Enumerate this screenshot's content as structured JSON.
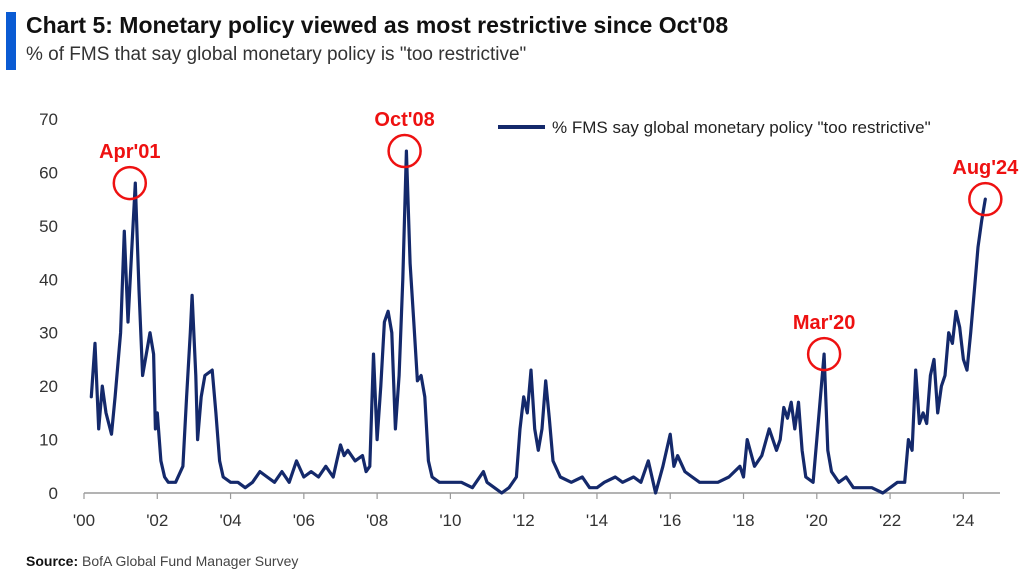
{
  "header": {
    "title": "Chart 5: Monetary policy viewed as most restrictive since Oct'08",
    "subtitle": "% of FMS that say global monetary policy is \"too restrictive\""
  },
  "footer": {
    "source_label": "Source:",
    "source_text": "BofA Global Fund Manager Survey"
  },
  "colors": {
    "line": "#14296b",
    "annotation": "#ee1111",
    "accent": "#0a5bd3",
    "axis": "#9a9a9a"
  },
  "chart_data": {
    "type": "line",
    "title": "Chart 5: Monetary policy viewed as most restrictive since Oct'08",
    "xlabel": "",
    "ylabel": "",
    "ylim": [
      0,
      70
    ],
    "xlim": [
      2000.0,
      2025.0
    ],
    "grid": false,
    "legend_position": "top-right",
    "y_ticks": [
      0,
      10,
      20,
      30,
      40,
      50,
      60,
      70
    ],
    "x_ticks": [
      {
        "value": 2000,
        "label": "'00"
      },
      {
        "value": 2002,
        "label": "'02"
      },
      {
        "value": 2004,
        "label": "'04"
      },
      {
        "value": 2006,
        "label": "'06"
      },
      {
        "value": 2008,
        "label": "'08"
      },
      {
        "value": 2010,
        "label": "'10"
      },
      {
        "value": 2012,
        "label": "'12"
      },
      {
        "value": 2014,
        "label": "'14"
      },
      {
        "value": 2016,
        "label": "'16"
      },
      {
        "value": 2018,
        "label": "'18"
      },
      {
        "value": 2020,
        "label": "'20"
      },
      {
        "value": 2022,
        "label": "'22"
      },
      {
        "value": 2024,
        "label": "'24"
      }
    ],
    "series": [
      {
        "name": "% FMS say global monetary policy \"too restrictive\"",
        "points": [
          [
            2000.2,
            18
          ],
          [
            2000.3,
            28
          ],
          [
            2000.4,
            12
          ],
          [
            2000.5,
            20
          ],
          [
            2000.6,
            15
          ],
          [
            2000.75,
            11
          ],
          [
            2000.85,
            18
          ],
          [
            2001.0,
            30
          ],
          [
            2001.1,
            49
          ],
          [
            2001.2,
            32
          ],
          [
            2001.3,
            45
          ],
          [
            2001.4,
            58
          ],
          [
            2001.5,
            38
          ],
          [
            2001.6,
            22
          ],
          [
            2001.7,
            26
          ],
          [
            2001.8,
            30
          ],
          [
            2001.9,
            26
          ],
          [
            2001.95,
            12
          ],
          [
            2002.0,
            15
          ],
          [
            2002.1,
            6
          ],
          [
            2002.2,
            3
          ],
          [
            2002.3,
            2
          ],
          [
            2002.5,
            2
          ],
          [
            2002.7,
            5
          ],
          [
            2002.8,
            18
          ],
          [
            2002.9,
            30
          ],
          [
            2002.95,
            37
          ],
          [
            2003.05,
            22
          ],
          [
            2003.1,
            10
          ],
          [
            2003.2,
            18
          ],
          [
            2003.3,
            22
          ],
          [
            2003.5,
            23
          ],
          [
            2003.6,
            15
          ],
          [
            2003.7,
            6
          ],
          [
            2003.8,
            3
          ],
          [
            2004.0,
            2
          ],
          [
            2004.2,
            2
          ],
          [
            2004.4,
            1
          ],
          [
            2004.6,
            2
          ],
          [
            2004.8,
            4
          ],
          [
            2005.0,
            3
          ],
          [
            2005.2,
            2
          ],
          [
            2005.4,
            4
          ],
          [
            2005.6,
            2
          ],
          [
            2005.8,
            6
          ],
          [
            2006.0,
            3
          ],
          [
            2006.2,
            4
          ],
          [
            2006.4,
            3
          ],
          [
            2006.6,
            5
          ],
          [
            2006.8,
            3
          ],
          [
            2006.9,
            6
          ],
          [
            2007.0,
            9
          ],
          [
            2007.1,
            7
          ],
          [
            2007.2,
            8
          ],
          [
            2007.4,
            6
          ],
          [
            2007.6,
            7
          ],
          [
            2007.7,
            4
          ],
          [
            2007.8,
            5
          ],
          [
            2007.9,
            26
          ],
          [
            2008.0,
            10
          ],
          [
            2008.1,
            20
          ],
          [
            2008.2,
            32
          ],
          [
            2008.3,
            34
          ],
          [
            2008.4,
            30
          ],
          [
            2008.5,
            12
          ],
          [
            2008.6,
            22
          ],
          [
            2008.7,
            40
          ],
          [
            2008.8,
            64
          ],
          [
            2008.9,
            43
          ],
          [
            2009.0,
            32
          ],
          [
            2009.1,
            21
          ],
          [
            2009.2,
            22
          ],
          [
            2009.3,
            18
          ],
          [
            2009.4,
            6
          ],
          [
            2009.5,
            3
          ],
          [
            2009.7,
            2
          ],
          [
            2010.0,
            2
          ],
          [
            2010.3,
            2
          ],
          [
            2010.6,
            1
          ],
          [
            2010.9,
            4
          ],
          [
            2011.0,
            2
          ],
          [
            2011.2,
            1
          ],
          [
            2011.4,
            0
          ],
          [
            2011.6,
            1
          ],
          [
            2011.8,
            3
          ],
          [
            2011.9,
            12
          ],
          [
            2012.0,
            18
          ],
          [
            2012.1,
            15
          ],
          [
            2012.2,
            23
          ],
          [
            2012.3,
            12
          ],
          [
            2012.4,
            8
          ],
          [
            2012.5,
            12
          ],
          [
            2012.6,
            21
          ],
          [
            2012.7,
            14
          ],
          [
            2012.8,
            6
          ],
          [
            2013.0,
            3
          ],
          [
            2013.3,
            2
          ],
          [
            2013.6,
            3
          ],
          [
            2013.8,
            1
          ],
          [
            2014.0,
            1
          ],
          [
            2014.2,
            2
          ],
          [
            2014.5,
            3
          ],
          [
            2014.7,
            2
          ],
          [
            2015.0,
            3
          ],
          [
            2015.2,
            2
          ],
          [
            2015.4,
            6
          ],
          [
            2015.6,
            0
          ],
          [
            2015.8,
            5
          ],
          [
            2016.0,
            11
          ],
          [
            2016.1,
            5
          ],
          [
            2016.2,
            7
          ],
          [
            2016.4,
            4
          ],
          [
            2016.6,
            3
          ],
          [
            2016.8,
            2
          ],
          [
            2017.0,
            2
          ],
          [
            2017.3,
            2
          ],
          [
            2017.6,
            3
          ],
          [
            2017.9,
            5
          ],
          [
            2018.0,
            3
          ],
          [
            2018.1,
            10
          ],
          [
            2018.3,
            5
          ],
          [
            2018.5,
            7
          ],
          [
            2018.7,
            12
          ],
          [
            2018.9,
            8
          ],
          [
            2019.0,
            10
          ],
          [
            2019.1,
            16
          ],
          [
            2019.2,
            14
          ],
          [
            2019.3,
            17
          ],
          [
            2019.4,
            12
          ],
          [
            2019.5,
            17
          ],
          [
            2019.6,
            8
          ],
          [
            2019.7,
            3
          ],
          [
            2019.9,
            2
          ],
          [
            2020.0,
            10
          ],
          [
            2020.2,
            26
          ],
          [
            2020.3,
            8
          ],
          [
            2020.4,
            4
          ],
          [
            2020.6,
            2
          ],
          [
            2020.8,
            3
          ],
          [
            2021.0,
            1
          ],
          [
            2021.2,
            1
          ],
          [
            2021.5,
            1
          ],
          [
            2021.8,
            0
          ],
          [
            2022.0,
            1
          ],
          [
            2022.2,
            2
          ],
          [
            2022.4,
            2
          ],
          [
            2022.5,
            10
          ],
          [
            2022.6,
            8
          ],
          [
            2022.7,
            23
          ],
          [
            2022.8,
            13
          ],
          [
            2022.9,
            15
          ],
          [
            2023.0,
            13
          ],
          [
            2023.1,
            22
          ],
          [
            2023.2,
            25
          ],
          [
            2023.3,
            15
          ],
          [
            2023.4,
            20
          ],
          [
            2023.5,
            22
          ],
          [
            2023.6,
            30
          ],
          [
            2023.7,
            28
          ],
          [
            2023.8,
            34
          ],
          [
            2023.9,
            31
          ],
          [
            2024.0,
            25
          ],
          [
            2024.1,
            23
          ],
          [
            2024.2,
            30
          ],
          [
            2024.3,
            38
          ],
          [
            2024.4,
            46
          ],
          [
            2024.5,
            51
          ],
          [
            2024.6,
            55
          ]
        ]
      }
    ],
    "annotations": [
      {
        "label": "Apr'01",
        "x": 2001.25,
        "y": 58
      },
      {
        "label": "Oct'08",
        "x": 2008.75,
        "y": 64
      },
      {
        "label": "Mar'20",
        "x": 2020.2,
        "y": 26
      },
      {
        "label": "Aug'24",
        "x": 2024.6,
        "y": 55
      }
    ]
  }
}
